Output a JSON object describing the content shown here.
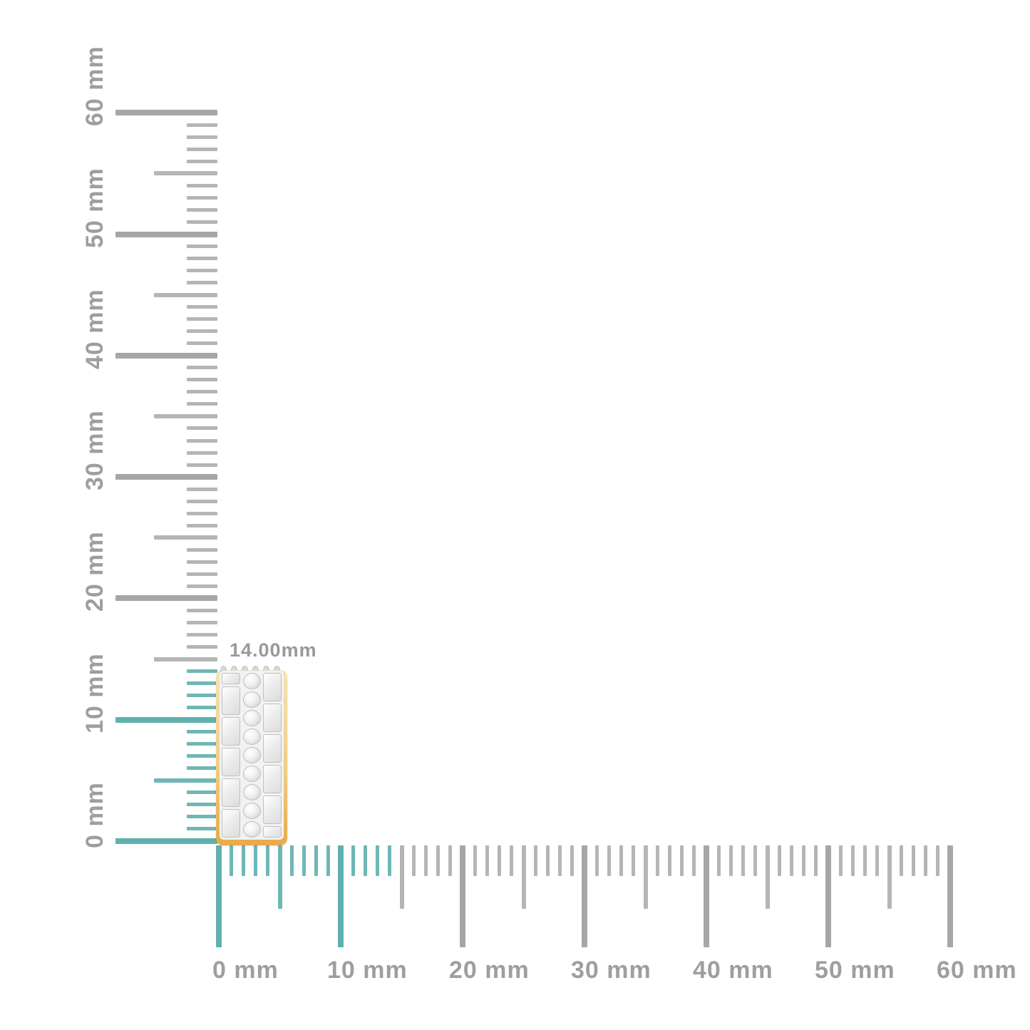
{
  "annotation": {
    "text": "14.00mm"
  },
  "rulers": {
    "unit": "mm",
    "max_mm": 60,
    "label_step_mm": 10,
    "highlight_to_mm": 14,
    "vertical": {
      "labels": [
        "0 mm",
        "10 mm",
        "20 mm",
        "30 mm",
        "40 mm",
        "50 mm",
        "60 mm"
      ]
    },
    "horizontal": {
      "labels": [
        "0 mm",
        "10 mm",
        "20 mm",
        "30 mm",
        "40 mm",
        "50 mm",
        "60 mm"
      ]
    }
  },
  "colors": {
    "highlight_teal": "#6fb7b5",
    "highlight_teal_major": "#5fb1ae",
    "minor_tick_gray": "#b5b5b5",
    "major_tick_gray": "#a6a6a6",
    "label_gray": "#9e9e9e",
    "annotation_gray": "#999999",
    "gold": "#e8aa49",
    "diamond_white": "#f2f2f2"
  },
  "item": {
    "name": "diamond-eternity-band",
    "round_stones": 9,
    "side_baguettes": 6,
    "prongs": 6
  }
}
